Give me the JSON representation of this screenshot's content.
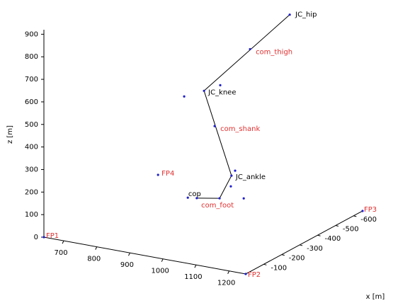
{
  "chart_data": {
    "type": "scatter3d",
    "xlabel": "x [m]",
    "zlabel": "z [m]",
    "xlim": [
      640,
      1250
    ],
    "xticks": [
      700,
      800,
      900,
      1000,
      1100,
      1200
    ],
    "ylim": [
      0,
      -650
    ],
    "yticks": [
      -100,
      -200,
      -300,
      -400,
      -500,
      -600
    ],
    "zlim": [
      0,
      920
    ],
    "zticks": [
      0,
      100,
      200,
      300,
      400,
      500,
      600,
      700,
      800,
      900
    ],
    "line": {
      "color": "#000000",
      "x": [
        1220,
        961,
        1044,
        1008,
        939
      ],
      "y": [
        -300,
        -300,
        -300,
        -300,
        -300
      ],
      "z": [
        1013,
        606,
        252,
        142,
        124
      ]
    },
    "points": {
      "color": "#1f1fd0",
      "labels": [
        "JC_hip",
        "com_thigh",
        "JC_knee",
        "com_shank",
        "JC_ankle",
        "com_foot",
        "cop",
        "FP1",
        "FP2",
        "FP3",
        "FP4",
        null,
        null,
        null,
        null,
        null,
        null
      ],
      "label_colors": [
        "#000000",
        "#e03030",
        "#000000",
        "#e03030",
        "#000000",
        "#e03030",
        "#000000",
        "#e03030",
        "#e03030",
        "#e03030",
        "#e03030",
        null,
        null,
        null,
        null,
        null,
        null
      ],
      "x": [
        1220,
        1100,
        961,
        993,
        1044,
        1008,
        939,
        640,
        1250,
        1250,
        822,
        1010,
        901,
        1055,
        1042,
        1081,
        912
      ],
      "y": [
        -300,
        -300,
        -300,
        -300,
        -300,
        -300,
        -300,
        0,
        0,
        -650,
        -300,
        -300,
        -300,
        -300,
        -300,
        -300,
        -300
      ],
      "z": [
        1013,
        828,
        606,
        458,
        252,
        142,
        124,
        0,
        0,
        0,
        196,
        644,
        565,
        277,
        204,
        161,
        119
      ]
    }
  }
}
